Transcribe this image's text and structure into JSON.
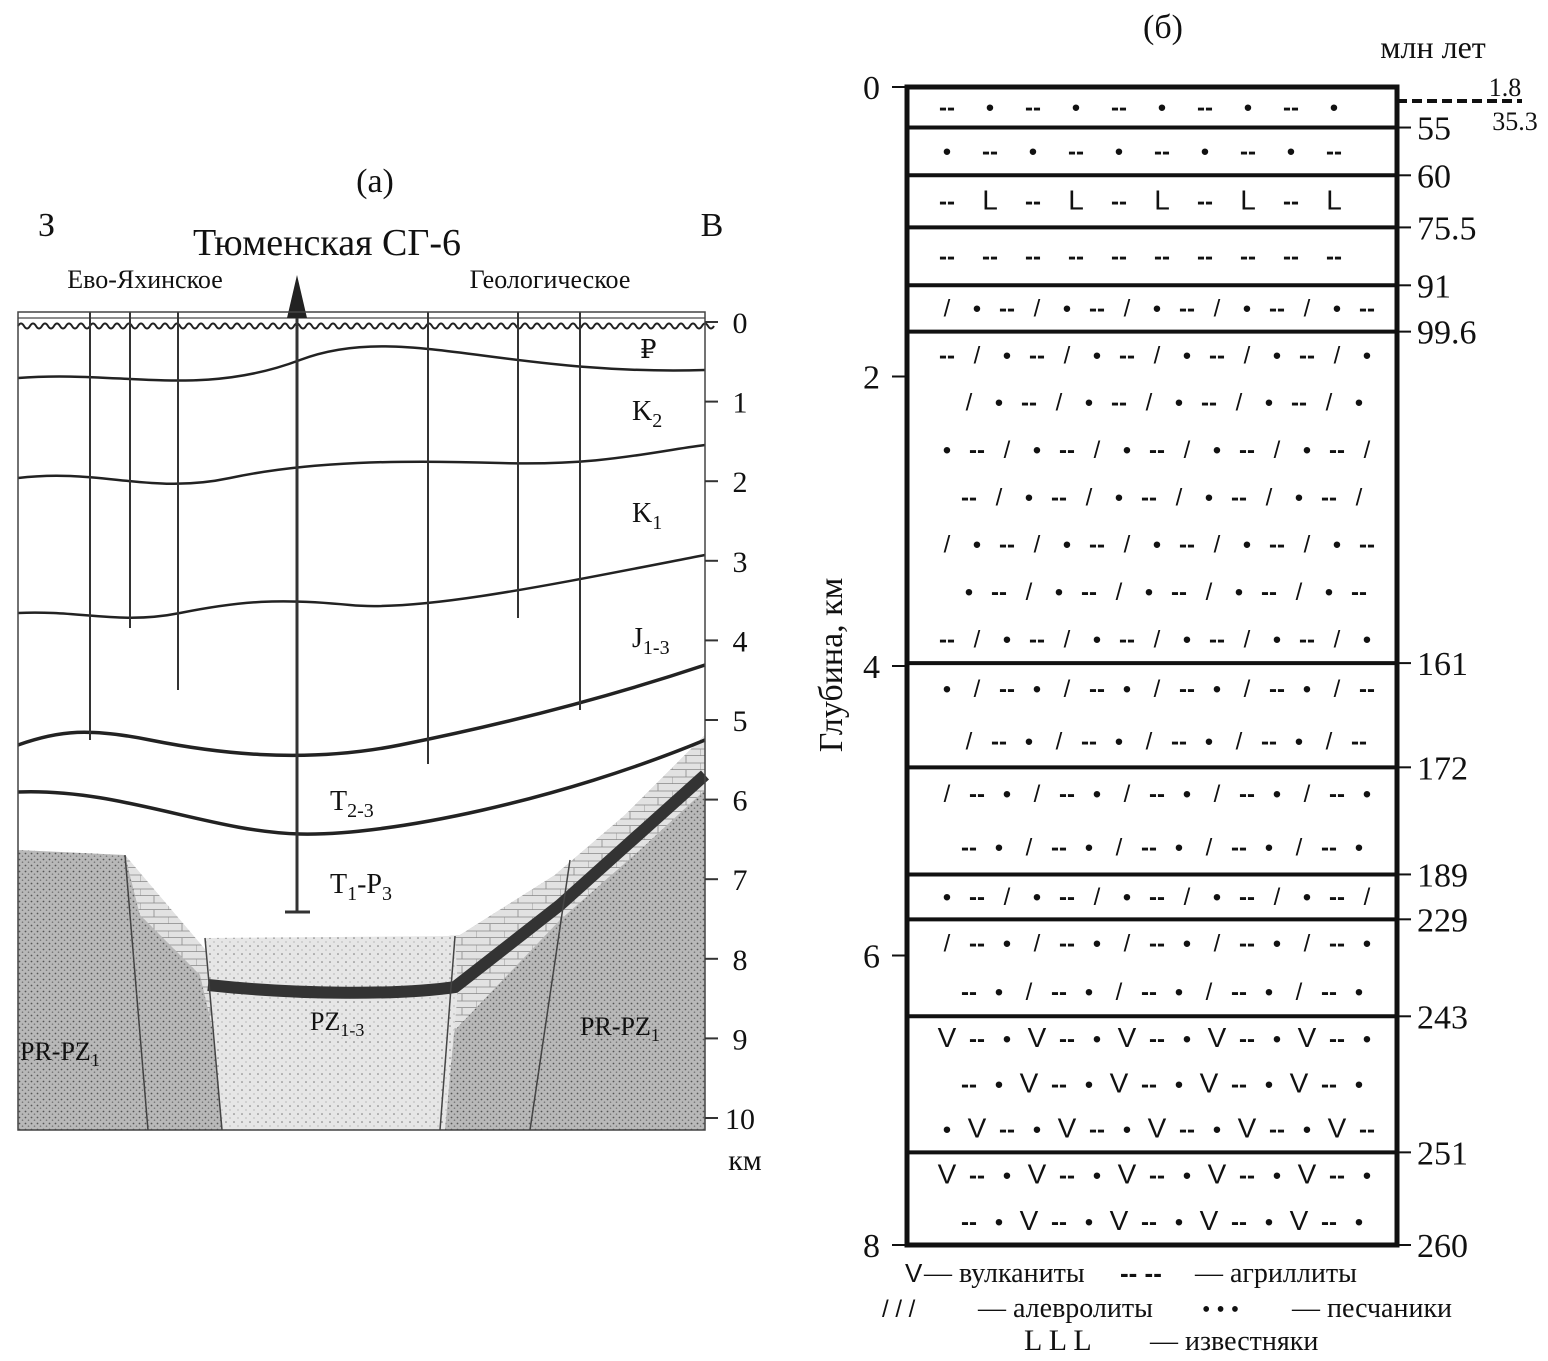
{
  "panel_a": {
    "label": "(а)",
    "west": "З",
    "east": "В",
    "well_title": "Тюменская СГ-6",
    "field_left": "Ево-Яхинское",
    "field_right": "Геологическое",
    "depth_ticks": [
      "0",
      "1",
      "2",
      "3",
      "4",
      "5",
      "6",
      "7",
      "8",
      "9",
      "10"
    ],
    "depth_unit": "км",
    "strata": {
      "paleogene": {
        "base": "₽",
        "sub": ""
      },
      "k2": {
        "base": "K",
        "sub": "2"
      },
      "k1": {
        "base": "K",
        "sub": "1"
      },
      "j": {
        "base": "J",
        "sub": "1-3"
      },
      "t23": {
        "base": "T",
        "sub": "2-3"
      },
      "t1p3": {
        "base": "T",
        "sub": "1",
        "mid": "-P",
        "sub2": "3"
      },
      "pz": {
        "base": "PZ",
        "sub": "1-3"
      },
      "prpz_left": {
        "base": "PR-PZ",
        "sub": "1"
      },
      "prpz_right": {
        "base": "PR-PZ",
        "sub": "1"
      }
    }
  },
  "panel_b": {
    "label": "(б)",
    "age_unit": "млн лет",
    "y_axis_label": "Глубина, км",
    "depth_ticks": [
      "0",
      "2",
      "4",
      "6",
      "8"
    ],
    "top_ages": {
      "upper": "1.8",
      "lower": "35.3"
    },
    "layers": [
      {
        "top": 0,
        "bottom": 0.28,
        "age": "55",
        "pattern": [
          "argillite",
          "sandstone"
        ]
      },
      {
        "top": 0.28,
        "bottom": 0.61,
        "age": "60",
        "pattern": [
          "sandstone",
          "argillite"
        ]
      },
      {
        "top": 0.61,
        "bottom": 0.97,
        "age": "75.5",
        "pattern": [
          "argillite",
          "limestone"
        ]
      },
      {
        "top": 0.97,
        "bottom": 1.37,
        "age": "91",
        "pattern": [
          "argillite"
        ]
      },
      {
        "top": 1.37,
        "bottom": 1.69,
        "age": "99.6",
        "pattern": [
          "siltstone",
          "sandstone",
          "argillite"
        ]
      },
      {
        "top": 1.69,
        "bottom": 3.98,
        "age": "161",
        "pattern": [
          "argillite",
          "siltstone",
          "sandstone"
        ]
      },
      {
        "top": 3.98,
        "bottom": 4.7,
        "age": "172",
        "pattern": [
          "sandstone",
          "siltstone",
          "argillite"
        ]
      },
      {
        "top": 4.7,
        "bottom": 5.44,
        "age": "189",
        "pattern": [
          "siltstone",
          "argillite",
          "sandstone"
        ]
      },
      {
        "top": 5.44,
        "bottom": 5.75,
        "age": "229",
        "pattern": [
          "sandstone",
          "argillite",
          "siltstone"
        ]
      },
      {
        "top": 5.75,
        "bottom": 6.42,
        "age": "243",
        "pattern": [
          "siltstone",
          "argillite",
          "sandstone"
        ]
      },
      {
        "top": 6.42,
        "bottom": 7.36,
        "age": "251",
        "pattern": [
          "volcanic",
          "argillite",
          "sandstone"
        ]
      },
      {
        "top": 7.36,
        "bottom": 8.0,
        "age": "260",
        "pattern": [
          "volcanic",
          "argillite",
          "sandstone"
        ]
      }
    ],
    "legend": {
      "volcanic": "— вулканиты",
      "argillite": "— агриллиты",
      "siltstone": "— алевролиты",
      "sandstone": "— песчаники",
      "limestone": "— известняки"
    }
  }
}
